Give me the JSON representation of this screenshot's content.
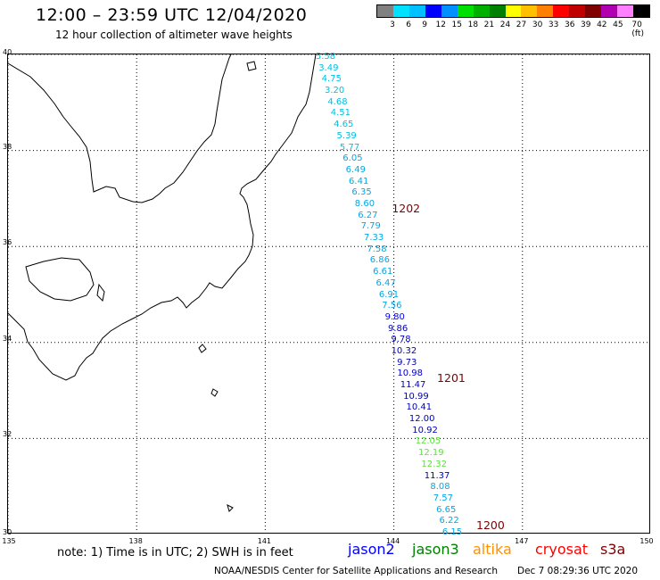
{
  "title": "12:00 – 23:59 UTC 12/04/2020",
  "subtitle": "12 hour collection of altimeter wave heights",
  "legend_scale": {
    "labels": [
      "3",
      "6",
      "9",
      "12",
      "15",
      "18",
      "21",
      "24",
      "27",
      "30",
      "33",
      "36",
      "39",
      "42",
      "45",
      "70 (ft)"
    ],
    "colors": [
      "#808080",
      "#00e0ff",
      "#00c0ff",
      "#0000ff",
      "#0090ff",
      "#00e000",
      "#00b000",
      "#008000",
      "#ffff00",
      "#ffc000",
      "#ff8000",
      "#ff0000",
      "#c00000",
      "#800000",
      "#b000b0",
      "#ff80ff",
      "#000000"
    ]
  },
  "axes": {
    "lat_labels": [
      "40",
      "38",
      "36",
      "34",
      "32",
      "30"
    ],
    "lon_labels": [
      "135",
      "138",
      "141",
      "144",
      "147",
      "150"
    ],
    "lat_range": [
      30,
      40
    ],
    "lon_range": [
      135,
      150
    ]
  },
  "time_markers": [
    {
      "label": "1202",
      "color": "#800000"
    },
    {
      "label": "1201",
      "color": "#800000"
    },
    {
      "label": "1200",
      "color": "#800000"
    }
  ],
  "wave_heights": [
    {
      "value": "5.58",
      "color": "#00c0e0"
    },
    {
      "value": "3.49",
      "color": "#00c0e0"
    },
    {
      "value": "4.75",
      "color": "#00c0e0"
    },
    {
      "value": "3.20",
      "color": "#00c0e0"
    },
    {
      "value": "4.68",
      "color": "#00c0e0"
    },
    {
      "value": "4.51",
      "color": "#00c0e0"
    },
    {
      "value": "4.65",
      "color": "#00c0e0"
    },
    {
      "value": "5.39",
      "color": "#00c0e0"
    },
    {
      "value": "5.77",
      "color": "#00c0e0"
    },
    {
      "value": "6.05",
      "color": "#00a8e8"
    },
    {
      "value": "6.49",
      "color": "#00a8e8"
    },
    {
      "value": "6.41",
      "color": "#00a8e8"
    },
    {
      "value": "6.35",
      "color": "#00a8e8"
    },
    {
      "value": "8.60",
      "color": "#00a8e8"
    },
    {
      "value": "6.27",
      "color": "#00a8e8"
    },
    {
      "value": "7.79",
      "color": "#00a8e8"
    },
    {
      "value": "7.33",
      "color": "#00a8e8"
    },
    {
      "value": "7.58",
      "color": "#00a8e8"
    },
    {
      "value": "6.86",
      "color": "#00a8e8"
    },
    {
      "value": "6.61",
      "color": "#00a8e8"
    },
    {
      "value": "6.47",
      "color": "#00a8e8"
    },
    {
      "value": "6.91",
      "color": "#00a8e8"
    },
    {
      "value": "7.56",
      "color": "#00a8e8"
    },
    {
      "value": "9.80",
      "color": "#0000ff"
    },
    {
      "value": "9.86",
      "color": "#0000c0"
    },
    {
      "value": "9.78",
      "color": "#0000c0"
    },
    {
      "value": "10.32",
      "color": "#0000c0"
    },
    {
      "value": "9.73",
      "color": "#0000c0"
    },
    {
      "value": "10.98",
      "color": "#0000c0"
    },
    {
      "value": "11.47",
      "color": "#0000c0"
    },
    {
      "value": "10.99",
      "color": "#0000c0"
    },
    {
      "value": "10.41",
      "color": "#0000c0"
    },
    {
      "value": "12.00",
      "color": "#0000c0"
    },
    {
      "value": "10.92",
      "color": "#0000c0"
    },
    {
      "value": "12.05",
      "color": "#60e040"
    },
    {
      "value": "12.19",
      "color": "#60e040"
    },
    {
      "value": "12.32",
      "color": "#60e040"
    },
    {
      "value": "11.37",
      "color": "#0000c0"
    },
    {
      "value": "8.08",
      "color": "#00a8e8"
    },
    {
      "value": "7.57",
      "color": "#00a8e8"
    },
    {
      "value": "6.65",
      "color": "#00a8e8"
    },
    {
      "value": "6.22",
      "color": "#00a8e8"
    },
    {
      "value": "6.15",
      "color": "#00a8e8"
    }
  ],
  "note": "note: 1) Time is in UTC; 2) SWH is in feet",
  "satellites": [
    {
      "name": "jason2",
      "color": "#0000ff"
    },
    {
      "name": "jason3",
      "color": "#008000"
    },
    {
      "name": "altika",
      "color": "#ff9000"
    },
    {
      "name": "cryosat",
      "color": "#ff0000"
    },
    {
      "name": "s3a",
      "color": "#800000"
    }
  ],
  "footer_left": "NOAA/NESDIS Center for Satellite Applications and Research",
  "footer_right": "Dec  7 08:29:36 UTC 2020"
}
